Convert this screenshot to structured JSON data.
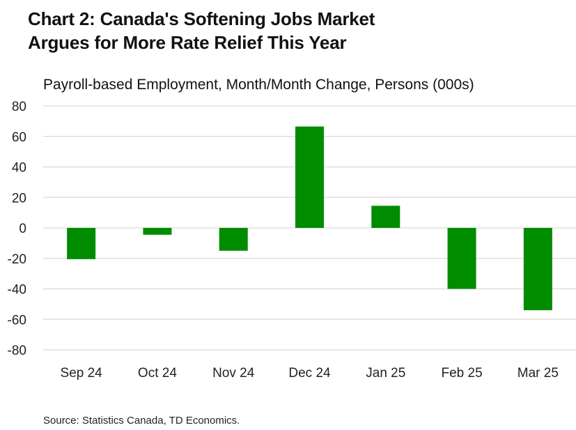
{
  "title_line1": "Chart 2: Canada's Softening Jobs Market",
  "title_line2": "Argues for More Rate Relief This Year",
  "source": "Source: Statistics Canada, TD Economics.",
  "chart_data": {
    "type": "bar",
    "title": "Chart 2: Canada's Softening Jobs Market Argues for More Rate Relief This Year",
    "subtitle": "Payroll-based Employment, Month/Month Change, Persons (000s)",
    "categories": [
      "Sep 24",
      "Oct 24",
      "Nov 24",
      "Dec 24",
      "Jan 25",
      "Feb 25",
      "Mar 25"
    ],
    "values": [
      -20.5,
      -4.5,
      -15,
      66.5,
      14.5,
      -40,
      -54
    ],
    "ylim": [
      -80,
      80
    ],
    "yticks": [
      80,
      60,
      40,
      20,
      0,
      -20,
      -40,
      -60,
      -80
    ],
    "grid": true,
    "bar_color": "#008c00",
    "grid_color": "#d9d9d9",
    "xlabel": "",
    "ylabel": ""
  }
}
